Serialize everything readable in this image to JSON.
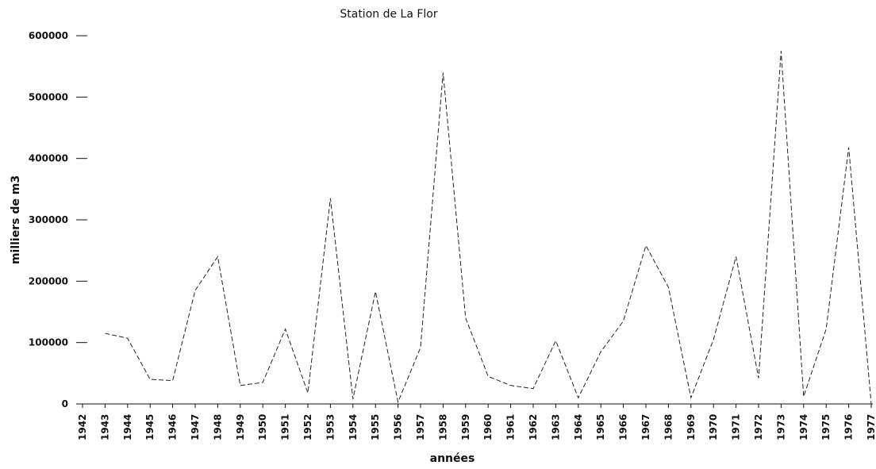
{
  "chart_data": {
    "type": "line",
    "title": "Station de La Flor",
    "x_label": "années",
    "y_label": "milliers de m3",
    "categories": [
      "1942",
      "1943",
      "1944",
      "1945",
      "1946",
      "1947",
      "1948",
      "1949",
      "1950",
      "1951",
      "1952",
      "1953",
      "1954",
      "1955",
      "1956",
      "1957",
      "1958",
      "1959",
      "1960",
      "1961",
      "1962",
      "1963",
      "1964",
      "1965",
      "1966",
      "1967",
      "1968",
      "1969",
      "1970",
      "1971",
      "1972",
      "1973",
      "1974",
      "1975",
      "1976",
      "1977"
    ],
    "series": [
      {
        "name": "Station de La Flor",
        "color": "#222222",
        "values": [
          null,
          115000,
          107000,
          40000,
          38000,
          185000,
          240000,
          30000,
          35000,
          122000,
          18000,
          335000,
          8000,
          183000,
          3000,
          92000,
          540000,
          140000,
          45000,
          30000,
          25000,
          103000,
          10000,
          85000,
          135000,
          258000,
          190000,
          10000,
          105000,
          240000,
          42000,
          575000,
          12000,
          122000,
          418000,
          0
        ]
      }
    ],
    "ylim": [
      0,
      600000
    ],
    "yticks": [
      0,
      100000,
      200000,
      300000,
      400000,
      500000,
      600000
    ]
  }
}
